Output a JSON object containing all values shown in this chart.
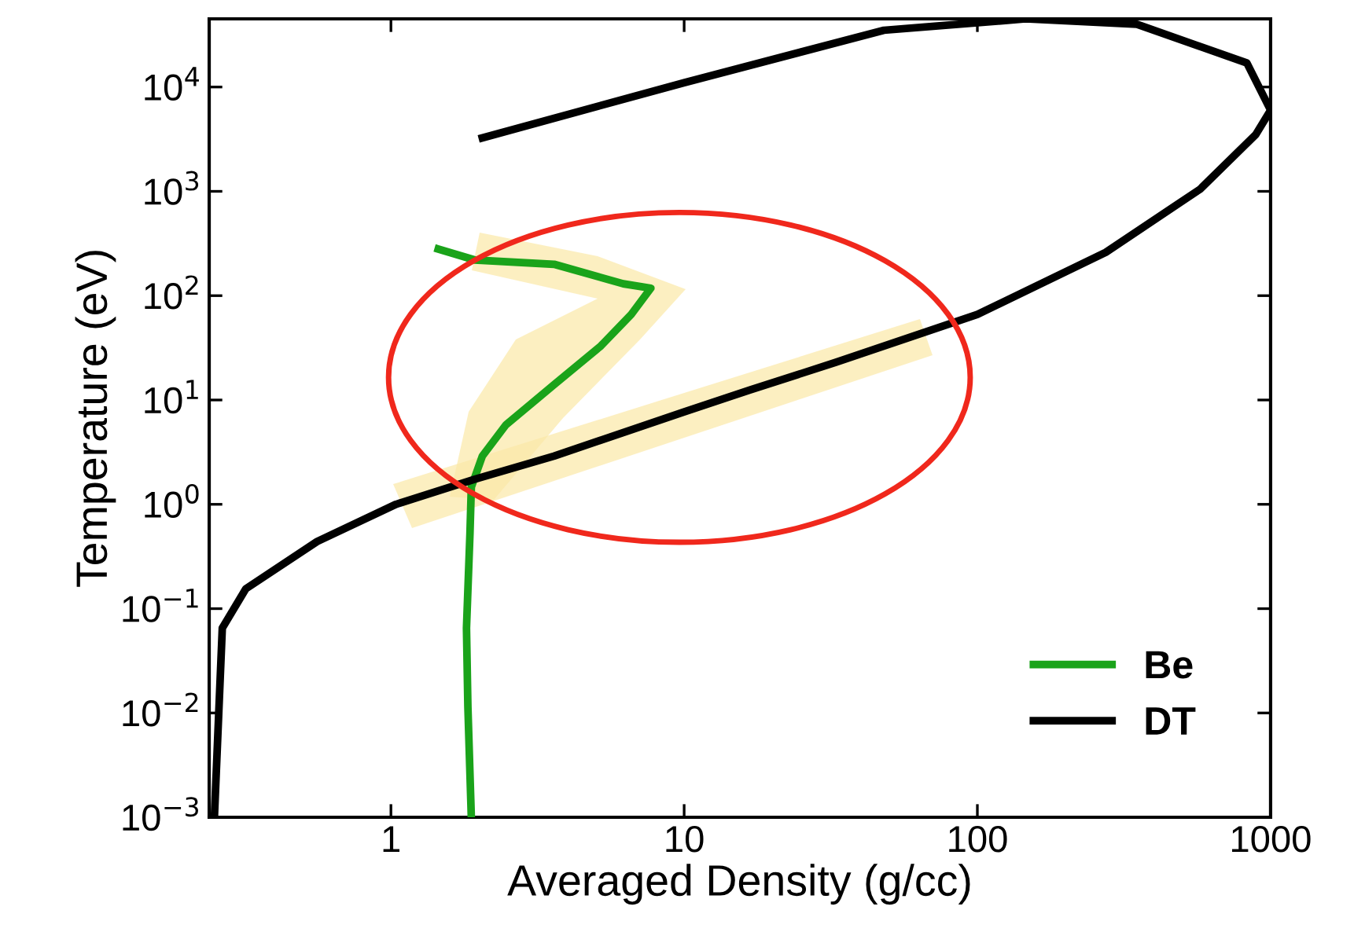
{
  "chart_data": {
    "type": "line",
    "xlabel": "Averaged Density (g/cc)",
    "ylabel": "Temperature (eV)",
    "log": "xy",
    "xlim": [
      0.24,
      1000
    ],
    "ylim": [
      0.001,
      45000
    ],
    "xticks": [
      1,
      10,
      100,
      1000
    ],
    "yticks": [
      {
        "value": 0.001,
        "label": "10$^{−3}$"
      },
      {
        "value": 0.01,
        "label": "10$^{−2}$"
      },
      {
        "value": 0.1,
        "label": "10$^{−1}$"
      },
      {
        "value": 1,
        "label": "10$^{0}$"
      },
      {
        "value": 10,
        "label": "10$^{1}$"
      },
      {
        "value": 100,
        "label": "10$^{2}$"
      },
      {
        "value": 1000,
        "label": "10$^{3}$"
      },
      {
        "value": 10000,
        "label": "10$^{4}$"
      }
    ],
    "legend": "bottom right",
    "grid": false,
    "marker": "none",
    "line_style": "solid",
    "series": [
      {
        "name": "Be",
        "color": "#1aa31a",
        "x": [
          1.45,
          1.93,
          3.6,
          6.2,
          7.7,
          6.6,
          5.2,
          3.6,
          2.47,
          2.05,
          1.88,
          1.86,
          1.81,
          1.83,
          1.88
        ],
        "values": [
          280,
          220,
          200,
          130,
          118,
          66,
          33,
          14,
          5.8,
          2.9,
          1.46,
          0.52,
          0.065,
          0.0115,
          0.001
        ]
      },
      {
        "name": "DT",
        "color": "#000000",
        "x": [
          0.25,
          0.266,
          0.32,
          0.56,
          1.04,
          1.93,
          3.6,
          10,
          16.8,
          33,
          100,
          274,
          575,
          890,
          1000,
          830,
          350,
          146,
          48,
          10,
          2.05
        ],
        "values": [
          0.001,
          0.065,
          0.155,
          0.44,
          1,
          1.74,
          2.9,
          7.7,
          12.5,
          23,
          66,
          260,
          1050,
          3500,
          6000,
          17000,
          40000,
          45000,
          35000,
          11000,
          3250
        ]
      }
    ]
  }
}
